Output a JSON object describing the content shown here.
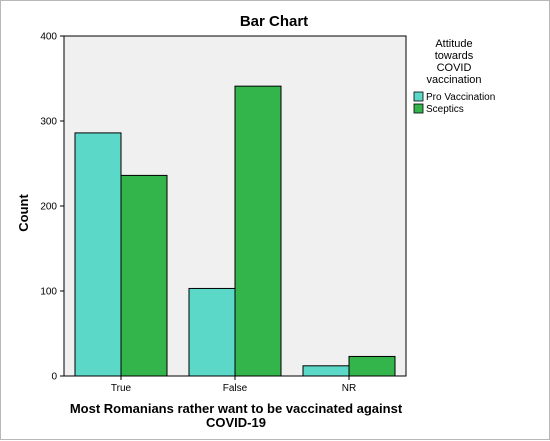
{
  "chart_data": {
    "type": "bar",
    "title": "Bar Chart",
    "xlabel": "Most Romanians rather want to be vaccinated against COVID-19",
    "xlabel_lines": [
      "Most Romanians rather want to be vaccinated against",
      "COVID-19"
    ],
    "ylabel": "Count",
    "ylim": [
      0,
      400
    ],
    "yticks": [
      0,
      100,
      200,
      300,
      400
    ],
    "categories": [
      "True",
      "False",
      "NR"
    ],
    "series": [
      {
        "name": "Pro Vaccination",
        "color": "#5cd8c8",
        "values": [
          286,
          103,
          12
        ]
      },
      {
        "name": "Sceptics",
        "color": "#33b54c",
        "values": [
          236,
          341,
          23
        ]
      }
    ],
    "legend": {
      "title_lines": [
        "Attitude",
        "towards",
        "COVID",
        "vaccination"
      ],
      "placement": "right"
    },
    "plot_background": "#f0f0f0",
    "grid": false
  }
}
